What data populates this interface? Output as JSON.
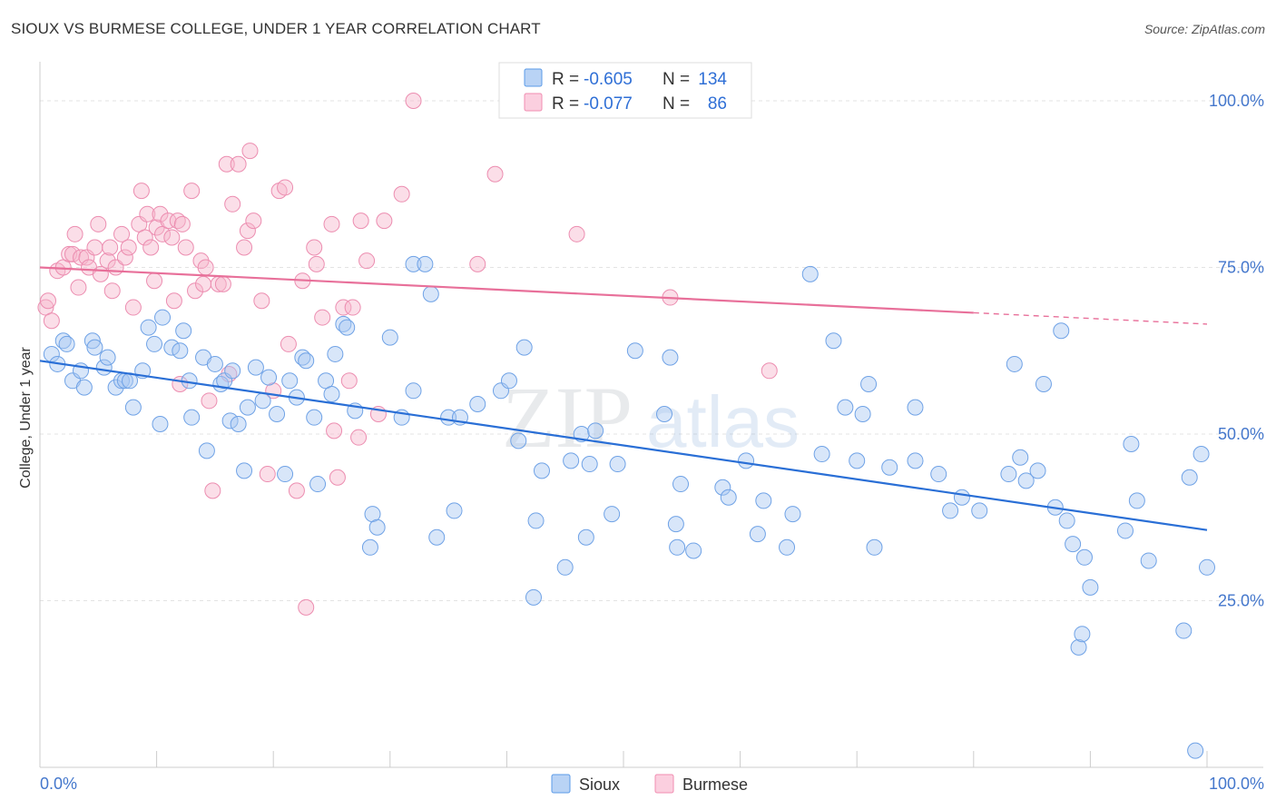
{
  "title": "SIOUX VS BURMESE COLLEGE, UNDER 1 YEAR CORRELATION CHART",
  "source": "Source: ZipAtlas.com",
  "colors": {
    "sioux": "#5b9be8",
    "burmese": "#f08cb0",
    "sioux_line": "#2a6fd6",
    "burmese_line": "#e8709a"
  },
  "legend": {
    "r_label": "R =",
    "n_label": "N =",
    "sioux": {
      "r": "-0.605",
      "n": "134"
    },
    "burmese": {
      "r": "-0.077",
      "n": "86"
    }
  },
  "watermark": {
    "zip": "ZIP",
    "atlas": "atlas"
  },
  "chart_data": {
    "type": "scatter",
    "xlabel": "",
    "ylabel": "College, Under 1 year",
    "xlim": [
      0,
      100
    ],
    "ylim": [
      0,
      105
    ],
    "x_ticks": [
      "0.0%",
      "100.0%"
    ],
    "y_ticks": [
      {
        "value": 100,
        "label": "100.0%"
      },
      {
        "value": 75,
        "label": "75.0%"
      },
      {
        "value": 50,
        "label": "50.0%"
      },
      {
        "value": 25,
        "label": "25.0%"
      }
    ],
    "grid": true,
    "legend_position": "top-center",
    "series": [
      {
        "name": "Sioux",
        "trend": {
          "x": [
            0,
            100
          ],
          "y": [
            61.0,
            35.6
          ]
        },
        "points": [
          [
            1,
            62
          ],
          [
            1.5,
            60.5
          ],
          [
            2,
            64
          ],
          [
            2.3,
            63.5
          ],
          [
            2.8,
            58
          ],
          [
            3.5,
            59.5
          ],
          [
            3.8,
            57
          ],
          [
            4.5,
            64
          ],
          [
            4.7,
            63
          ],
          [
            5.5,
            60
          ],
          [
            5.8,
            61.5
          ],
          [
            6.5,
            57
          ],
          [
            7,
            58
          ],
          [
            7.3,
            58
          ],
          [
            7.7,
            58
          ],
          [
            8,
            54
          ],
          [
            8.8,
            59.5
          ],
          [
            9.3,
            66
          ],
          [
            9.8,
            63.5
          ],
          [
            10.3,
            51.5
          ],
          [
            10.5,
            67.5
          ],
          [
            11.3,
            63
          ],
          [
            12,
            62.5
          ],
          [
            12.3,
            65.5
          ],
          [
            12.8,
            58
          ],
          [
            13,
            52.5
          ],
          [
            14,
            61.5
          ],
          [
            14.3,
            47.5
          ],
          [
            15,
            60.5
          ],
          [
            15.5,
            57.5
          ],
          [
            15.8,
            58
          ],
          [
            16.3,
            52
          ],
          [
            16.5,
            59.5
          ],
          [
            17,
            51.5
          ],
          [
            17.5,
            44.5
          ],
          [
            17.8,
            54
          ],
          [
            18.5,
            60
          ],
          [
            19.1,
            55
          ],
          [
            19.6,
            58.5
          ],
          [
            20.3,
            53
          ],
          [
            21,
            44
          ],
          [
            21.4,
            58
          ],
          [
            22,
            55.5
          ],
          [
            22.5,
            61.5
          ],
          [
            22.8,
            61
          ],
          [
            23.5,
            52.5
          ],
          [
            23.8,
            42.5
          ],
          [
            24.5,
            58
          ],
          [
            25,
            56
          ],
          [
            25.3,
            62
          ],
          [
            26,
            66.5
          ],
          [
            26.3,
            66
          ],
          [
            27,
            53.5
          ],
          [
            28.3,
            33
          ],
          [
            28.5,
            38
          ],
          [
            28.9,
            36
          ],
          [
            30,
            64.5
          ],
          [
            31,
            52.5
          ],
          [
            32,
            56.5
          ],
          [
            32,
            75.5
          ],
          [
            33,
            75.5
          ],
          [
            33.5,
            71
          ],
          [
            34,
            34.5
          ],
          [
            35,
            52.5
          ],
          [
            35.5,
            38.5
          ],
          [
            36,
            52.5
          ],
          [
            37.5,
            54.5
          ],
          [
            39.5,
            56.5
          ],
          [
            40.2,
            58
          ],
          [
            41,
            49
          ],
          [
            41.5,
            63
          ],
          [
            42.3,
            25.5
          ],
          [
            42.5,
            37
          ],
          [
            43,
            44.5
          ],
          [
            45,
            30
          ],
          [
            45.5,
            46
          ],
          [
            46.4,
            50
          ],
          [
            46.8,
            34.5
          ],
          [
            47.1,
            45.5
          ],
          [
            47.6,
            50.5
          ],
          [
            49,
            38
          ],
          [
            49.5,
            45.5
          ],
          [
            51,
            62.5
          ],
          [
            53.5,
            53
          ],
          [
            54,
            61.5
          ],
          [
            54.5,
            36.5
          ],
          [
            54.6,
            33
          ],
          [
            54.9,
            42.5
          ],
          [
            56,
            32.5
          ],
          [
            58.5,
            42
          ],
          [
            59,
            40.5
          ],
          [
            60.5,
            46
          ],
          [
            61.5,
            35
          ],
          [
            62,
            40
          ],
          [
            64,
            33
          ],
          [
            64.5,
            38
          ],
          [
            66,
            74
          ],
          [
            67,
            47
          ],
          [
            68,
            64
          ],
          [
            69,
            54
          ],
          [
            70,
            46
          ],
          [
            70.5,
            53
          ],
          [
            71,
            57.5
          ],
          [
            71.5,
            33
          ],
          [
            72.8,
            45
          ],
          [
            75,
            46
          ],
          [
            75,
            54
          ],
          [
            77,
            44
          ],
          [
            78,
            38.5
          ],
          [
            79,
            40.5
          ],
          [
            80.5,
            38.5
          ],
          [
            83,
            44
          ],
          [
            83.5,
            60.5
          ],
          [
            84,
            46.5
          ],
          [
            84.5,
            43
          ],
          [
            85.5,
            44.5
          ],
          [
            86,
            57.5
          ],
          [
            87,
            39
          ],
          [
            87.5,
            65.5
          ],
          [
            88,
            37
          ],
          [
            88.5,
            33.5
          ],
          [
            89,
            18
          ],
          [
            89.3,
            20
          ],
          [
            89.5,
            31.5
          ],
          [
            90,
            27
          ],
          [
            93,
            35.5
          ],
          [
            93.5,
            48.5
          ],
          [
            94,
            40
          ],
          [
            95,
            31
          ],
          [
            98,
            20.5
          ],
          [
            98.5,
            43.5
          ],
          [
            99,
            2.5
          ],
          [
            99.5,
            47
          ],
          [
            100,
            30
          ]
        ]
      },
      {
        "name": "Burmese",
        "trend": {
          "x": [
            0,
            80
          ],
          "y": [
            75.0,
            68.2
          ]
        },
        "trend_dashed": {
          "x": [
            80,
            100
          ],
          "y": [
            68.2,
            66.5
          ]
        },
        "points": [
          [
            0.5,
            69
          ],
          [
            0.7,
            70
          ],
          [
            1,
            67
          ],
          [
            1.5,
            74.5
          ],
          [
            2,
            75
          ],
          [
            2.5,
            77
          ],
          [
            2.8,
            77
          ],
          [
            3,
            80
          ],
          [
            3.3,
            72
          ],
          [
            3.5,
            76.5
          ],
          [
            4,
            76.5
          ],
          [
            4.2,
            75
          ],
          [
            4.7,
            78
          ],
          [
            5,
            81.5
          ],
          [
            5.2,
            74
          ],
          [
            5.8,
            76
          ],
          [
            6,
            78
          ],
          [
            6.2,
            71.5
          ],
          [
            6.5,
            75
          ],
          [
            7,
            80
          ],
          [
            7.3,
            76.5
          ],
          [
            7.6,
            78
          ],
          [
            8,
            69
          ],
          [
            8.5,
            81.5
          ],
          [
            8.7,
            86.5
          ],
          [
            9,
            79.5
          ],
          [
            9.2,
            83
          ],
          [
            9.5,
            78
          ],
          [
            9.8,
            73
          ],
          [
            10,
            81
          ],
          [
            10.3,
            83
          ],
          [
            10.5,
            80
          ],
          [
            11,
            82
          ],
          [
            11.3,
            79.5
          ],
          [
            11.5,
            70
          ],
          [
            11.8,
            82
          ],
          [
            12,
            57.5
          ],
          [
            12.2,
            81.5
          ],
          [
            12.5,
            78
          ],
          [
            13,
            86.5
          ],
          [
            13.3,
            71.5
          ],
          [
            13.8,
            76
          ],
          [
            14,
            72.5
          ],
          [
            14.2,
            75
          ],
          [
            14.5,
            55
          ],
          [
            14.8,
            41.5
          ],
          [
            15.3,
            72.5
          ],
          [
            15.7,
            72.5
          ],
          [
            16,
            90.5
          ],
          [
            16.2,
            59
          ],
          [
            16.5,
            84.5
          ],
          [
            17,
            90.5
          ],
          [
            17.5,
            78
          ],
          [
            17.8,
            80.5
          ],
          [
            18,
            92.5
          ],
          [
            18.3,
            82
          ],
          [
            19,
            70
          ],
          [
            19.5,
            44
          ],
          [
            20,
            56.5
          ],
          [
            20.5,
            86.5
          ],
          [
            21,
            87
          ],
          [
            21.3,
            63.5
          ],
          [
            22,
            41.5
          ],
          [
            22.5,
            73
          ],
          [
            22.8,
            24
          ],
          [
            23.5,
            78
          ],
          [
            23.7,
            75.5
          ],
          [
            24.2,
            67.5
          ],
          [
            25,
            81.5
          ],
          [
            25.2,
            50.5
          ],
          [
            25.5,
            43.5
          ],
          [
            26,
            69
          ],
          [
            26.5,
            58
          ],
          [
            26.8,
            69
          ],
          [
            27.3,
            49.5
          ],
          [
            27.5,
            82
          ],
          [
            28,
            76
          ],
          [
            29,
            53
          ],
          [
            29.5,
            82
          ],
          [
            31,
            86
          ],
          [
            32,
            100
          ],
          [
            37.5,
            75.5
          ],
          [
            39,
            89
          ],
          [
            46,
            80
          ],
          [
            54,
            70.5
          ],
          [
            62.5,
            59.5
          ]
        ]
      }
    ]
  }
}
